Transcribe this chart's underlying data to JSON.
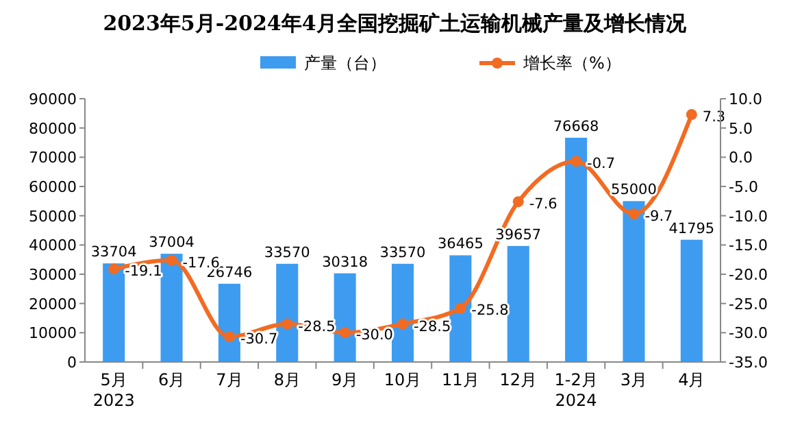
{
  "chart_data": {
    "type": "bar",
    "title": "2023年5月-2024年4月全国挖掘矿土运输机械产量及增长情况",
    "categories": [
      "5月\n2023",
      "6月",
      "7月",
      "8月",
      "9月",
      "10月",
      "11月",
      "12月",
      "1-2月\n2024",
      "3月",
      "4月"
    ],
    "series": [
      {
        "name": "产量（台）",
        "color": "#3d9cf0",
        "values": [
          33704,
          37004,
          26746,
          33570,
          30318,
          33570,
          36465,
          39657,
          76668,
          55000,
          41795
        ]
      },
      {
        "name": "增长率（%）",
        "type": "line",
        "axis": "y2",
        "color": "#f26b22",
        "marker": "circle",
        "values": [
          -19.1,
          -17.6,
          -30.7,
          -28.5,
          -30.0,
          -28.5,
          -25.8,
          -7.6,
          -0.7,
          -9.7,
          7.3
        ],
        "value_labels": [
          "-19.1",
          "-17.6",
          "-30.7",
          "-28.5",
          "-30.0",
          "-28.5",
          "-25.8",
          "-7.6",
          "-0.7",
          "-9.7",
          "7.3"
        ]
      }
    ],
    "ylim": [
      0,
      90000
    ],
    "yticks": [
      0,
      10000,
      20000,
      30000,
      40000,
      50000,
      60000,
      70000,
      80000,
      90000
    ],
    "y2lim": [
      -35,
      10
    ],
    "y2ticks": [
      {
        "value": -35,
        "label": "-35.0"
      },
      {
        "value": -30,
        "label": "-30.0"
      },
      {
        "value": -25,
        "label": "-25.0"
      },
      {
        "value": -20,
        "label": "-20.0"
      },
      {
        "value": -15,
        "label": "-15.0"
      },
      {
        "value": -10,
        "label": "-10.0"
      },
      {
        "value": -5,
        "label": "-5.0"
      },
      {
        "value": 0,
        "label": "0.0"
      },
      {
        "value": 5,
        "label": "5.0"
      },
      {
        "value": 10,
        "label": "10.0"
      }
    ],
    "data_labels": true,
    "legend": "top",
    "grid": false
  }
}
